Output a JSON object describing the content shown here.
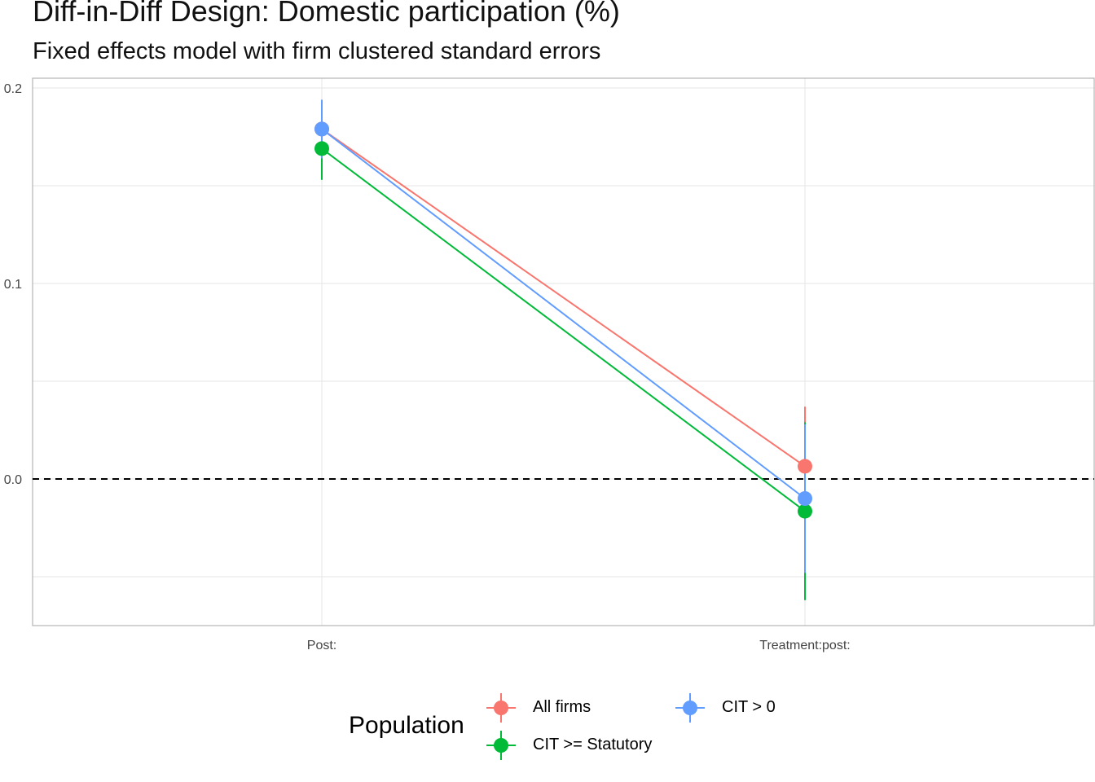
{
  "title": "Diff-in-Diff Design: Domestic participation (%)",
  "subtitle": "Fixed effects model with firm clustered standard errors",
  "legend": {
    "title": "Population",
    "items": [
      {
        "label": "All firms",
        "color": "#F8766D"
      },
      {
        "label": "CIT > 0",
        "color": "#619CFF"
      },
      {
        "label": "CIT >= Statutory",
        "color": "#00BA38"
      }
    ]
  },
  "chart_data": {
    "type": "line",
    "categories": [
      "Post:",
      "Treatment:post:"
    ],
    "y_ticks": [
      "0.0",
      "0.1",
      "0.2"
    ],
    "ylim": [
      -0.075,
      0.205
    ],
    "reference_line": 0,
    "grid": true,
    "legend_position": "bottom",
    "series": [
      {
        "name": "All firms",
        "color": "#F8766D",
        "values": [
          0.179,
          0.0065
        ],
        "lower": [
          0.165,
          -0.024
        ],
        "upper": [
          0.193,
          0.037
        ]
      },
      {
        "name": "CIT >= Statutory",
        "color": "#00BA38",
        "values": [
          0.169,
          -0.0165
        ],
        "lower": [
          0.153,
          -0.062
        ],
        "upper": [
          0.185,
          0.029
        ]
      },
      {
        "name": "CIT > 0",
        "color": "#619CFF",
        "values": [
          0.179,
          -0.01
        ],
        "lower": [
          0.164,
          -0.048
        ],
        "upper": [
          0.194,
          0.028
        ]
      }
    ]
  }
}
